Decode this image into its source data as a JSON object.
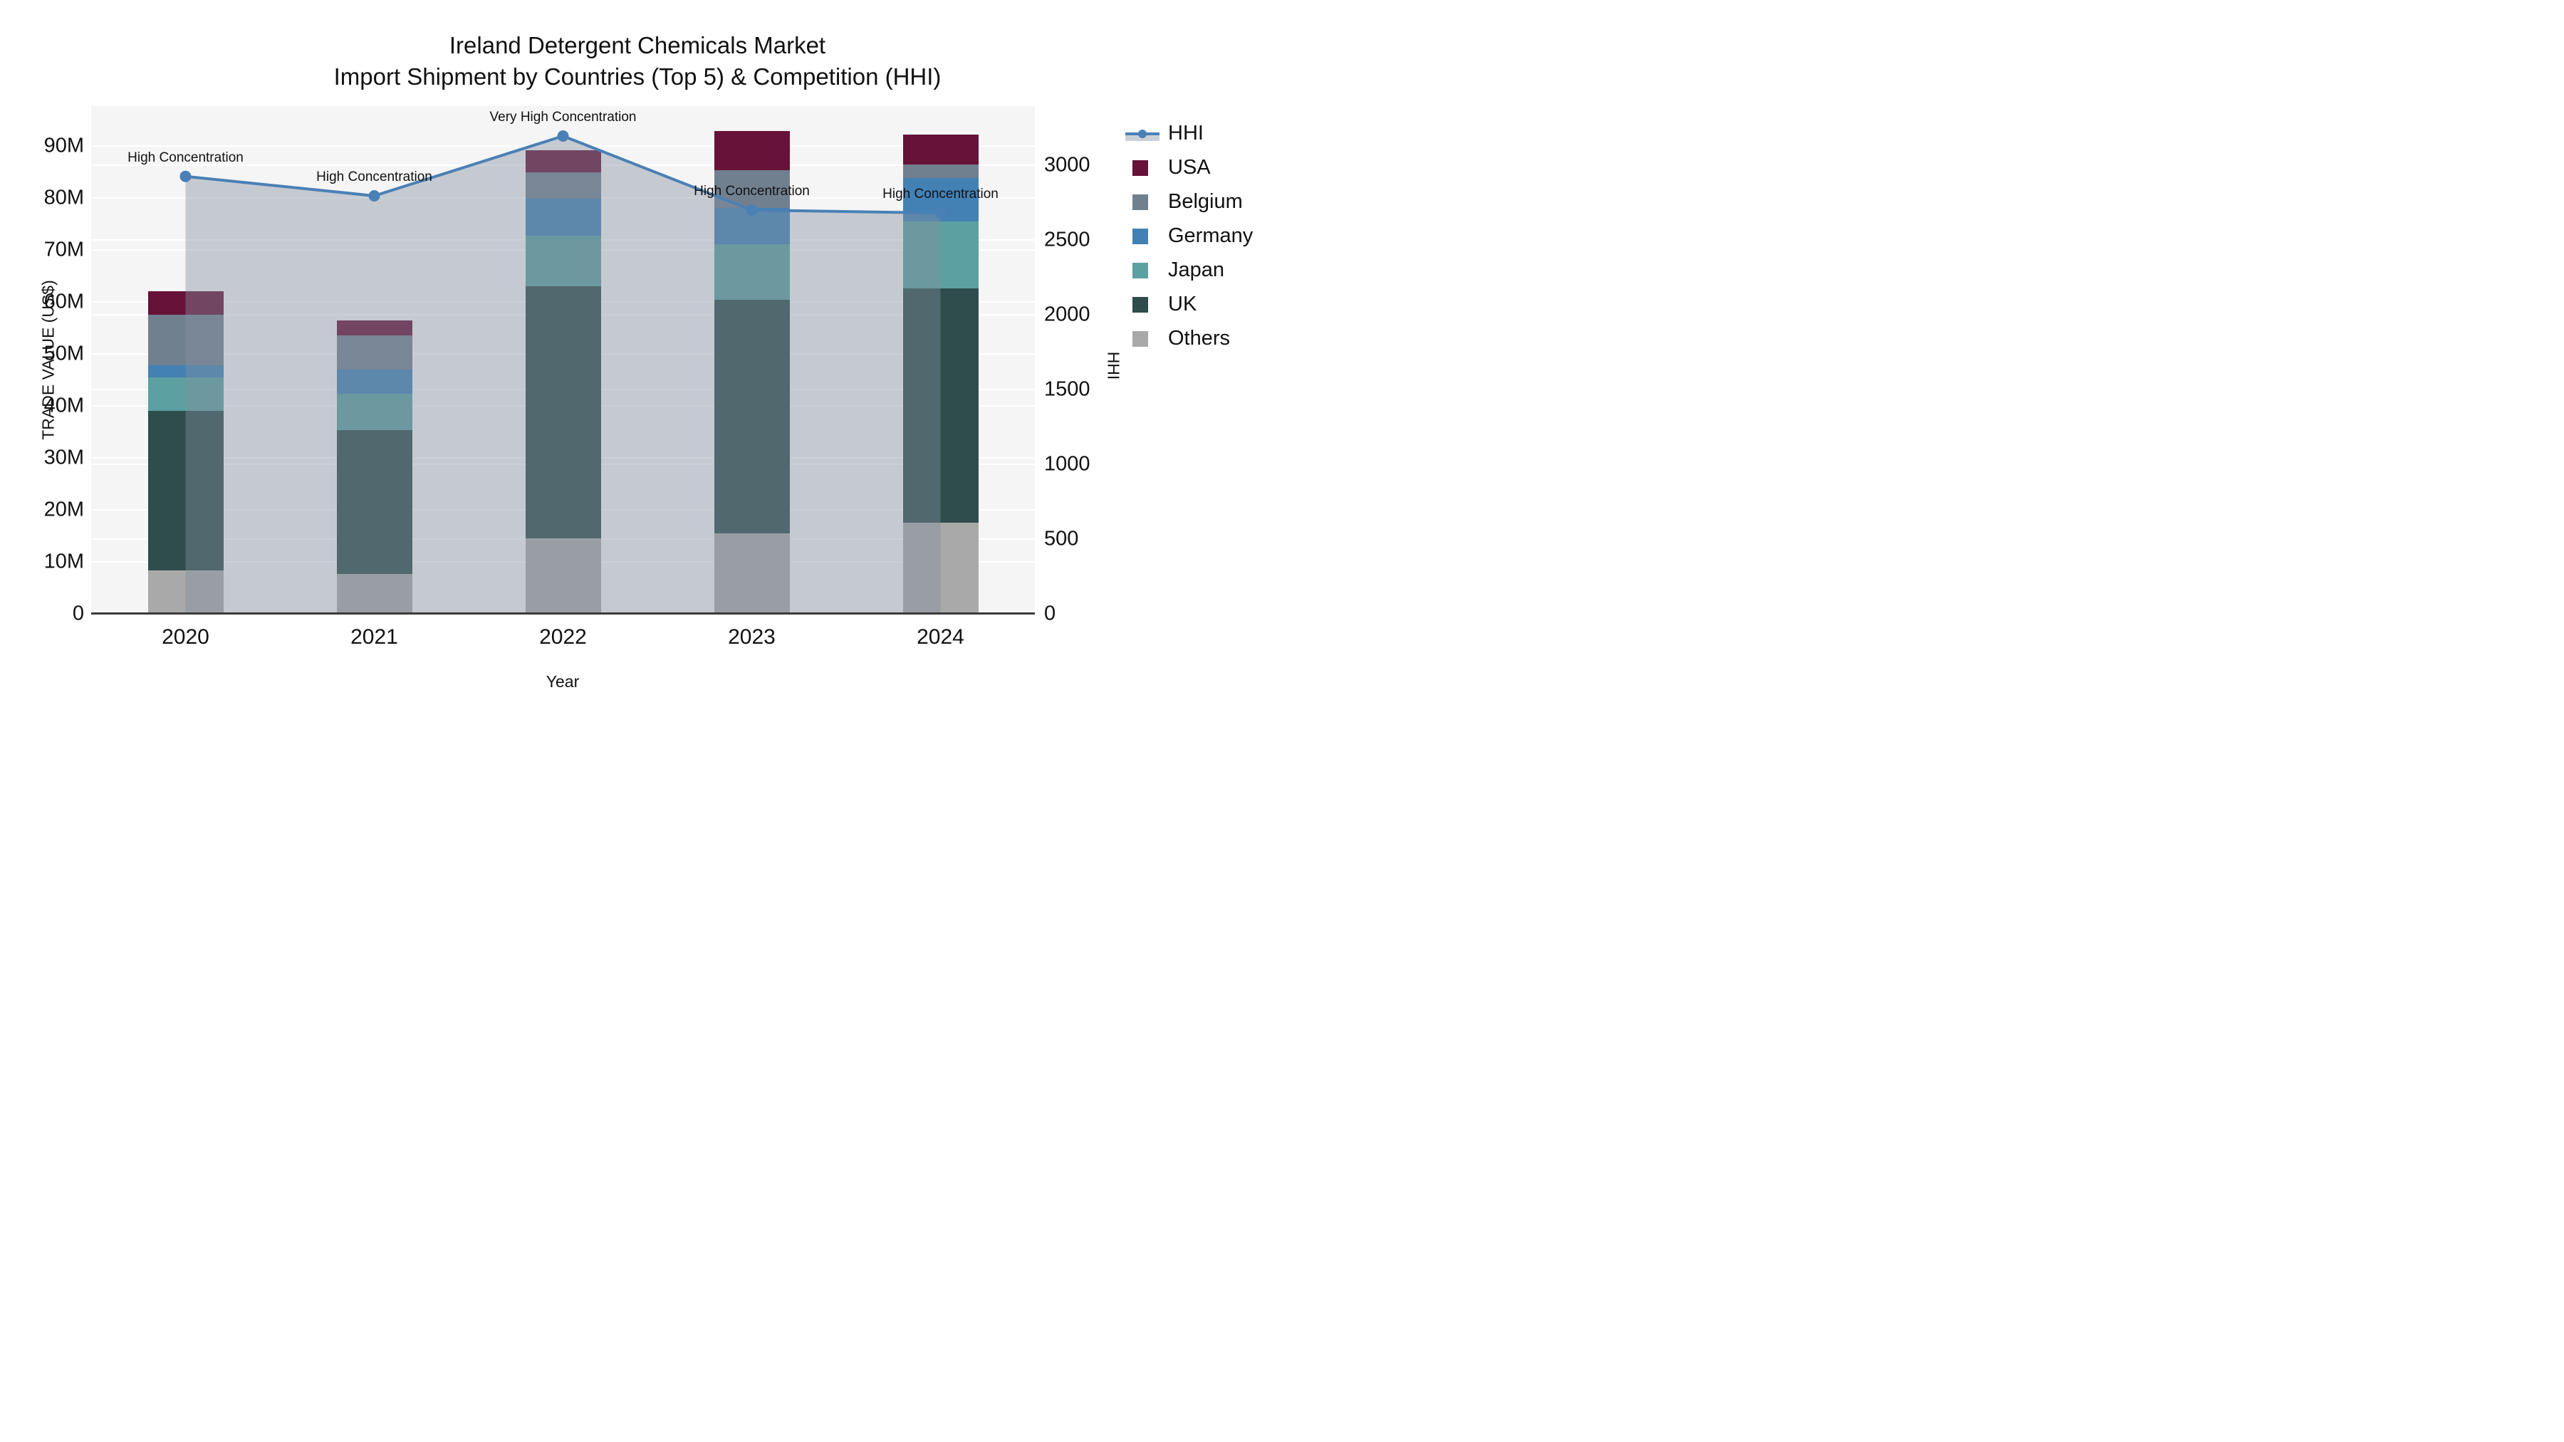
{
  "title": {
    "line1": "Ireland Detergent Chemicals Market",
    "line2": "Import Shipment by Countries (Top 5) & Competition (HHI)"
  },
  "axes": {
    "left": {
      "title": "TRADE VALUE (US$)",
      "ticks": [
        {
          "label": "0",
          "value": 0
        },
        {
          "label": "10M",
          "value": 10
        },
        {
          "label": "20M",
          "value": 20
        },
        {
          "label": "30M",
          "value": 30
        },
        {
          "label": "40M",
          "value": 40
        },
        {
          "label": "50M",
          "value": 50
        },
        {
          "label": "60M",
          "value": 60
        },
        {
          "label": "70M",
          "value": 70
        },
        {
          "label": "80M",
          "value": 80
        },
        {
          "label": "90M",
          "value": 90
        }
      ]
    },
    "right": {
      "title": "HHI",
      "ticks": [
        {
          "label": "0",
          "value": 0
        },
        {
          "label": "500",
          "value": 500
        },
        {
          "label": "1000",
          "value": 1000
        },
        {
          "label": "1500",
          "value": 1500
        },
        {
          "label": "2000",
          "value": 2000
        },
        {
          "label": "2500",
          "value": 2500
        },
        {
          "label": "3000",
          "value": 3000
        }
      ]
    },
    "x": {
      "title": "Year",
      "categories": [
        "2020",
        "2021",
        "2022",
        "2023",
        "2024"
      ]
    }
  },
  "legend": {
    "items": [
      {
        "label": "HHI",
        "type": "line",
        "color": "#4a80b5"
      },
      {
        "label": "USA",
        "type": "square",
        "color": "#671238"
      },
      {
        "label": "Belgium",
        "type": "square",
        "color": "#71808f"
      },
      {
        "label": "Germany",
        "type": "square",
        "color": "#4381b4"
      },
      {
        "label": "Japan",
        "type": "square",
        "color": "#5ca0a1"
      },
      {
        "label": "UK",
        "type": "square",
        "color": "#2e4d4c"
      },
      {
        "label": "Others",
        "type": "square",
        "color": "#a9a9a9"
      }
    ]
  },
  "colors": {
    "plot_bg": "#f5f5f5",
    "grid": "#ffffff",
    "axis_line": "#3a3a3a",
    "hhi_line": "#4a80b5",
    "hhi_fill": "rgba(130,142,160,0.42)",
    "text": "#111111"
  },
  "chart_data": {
    "type": "bar",
    "subtype": "stacked-bars-with-line",
    "title": "Ireland Detergent Chemicals Market — Import Shipment by Countries (Top 5) & Competition (HHI)",
    "xlabel": "Year",
    "ylabel_left": "TRADE VALUE (US$)",
    "ylabel_right": "HHI",
    "categories": [
      "2020",
      "2021",
      "2022",
      "2023",
      "2024"
    ],
    "unit": "million US$",
    "series": [
      {
        "name": "Others",
        "color": "#a9a9a9",
        "values": [
          8.4,
          7.7,
          14.5,
          15.5,
          17.5
        ]
      },
      {
        "name": "UK",
        "color": "#2e4d4c",
        "values": [
          30.7,
          27.6,
          48.6,
          44.9,
          45.1
        ]
      },
      {
        "name": "Japan",
        "color": "#5ca0a1",
        "values": [
          6.4,
          7.1,
          9.6,
          10.7,
          12.9
        ]
      },
      {
        "name": "Germany",
        "color": "#4381b4",
        "values": [
          2.3,
          4.6,
          7.2,
          7.0,
          8.4
        ]
      },
      {
        "name": "Belgium",
        "color": "#71808f",
        "values": [
          9.8,
          6.6,
          5.1,
          7.3,
          2.5
        ]
      },
      {
        "name": "USA",
        "color": "#671238",
        "values": [
          4.5,
          2.8,
          4.2,
          7.5,
          5.8
        ]
      }
    ],
    "bar_totals": [
      62.1,
      56.4,
      89.2,
      92.9,
      92.2
    ],
    "line_series": {
      "name": "HHI",
      "color": "#4a80b5",
      "values": [
        2925,
        2795,
        3195,
        2700,
        2680
      ]
    },
    "annotations": [
      {
        "x": "2020",
        "text": "High Concentration"
      },
      {
        "x": "2021",
        "text": "High Concentration"
      },
      {
        "x": "2022",
        "text": "Very High Concentration"
      },
      {
        "x": "2023",
        "text": "High Concentration"
      },
      {
        "x": "2024",
        "text": "High Concentration"
      }
    ],
    "ylim_left": [
      0,
      97.7
    ],
    "ylim_right": [
      0,
      3395
    ],
    "grid": true,
    "legend_position": "right"
  }
}
